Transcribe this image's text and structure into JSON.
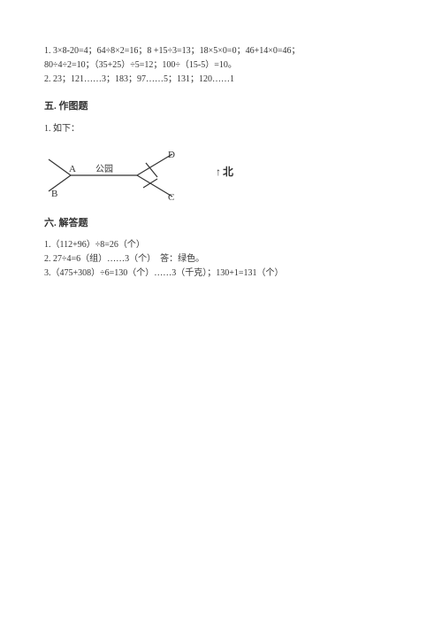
{
  "answers1": {
    "line1": "1. 3×8-20=4；64÷8×2=16；8 +15÷3=13；18×5×0=0；46+14×0=46；",
    "line2": "80÷4÷2=10；（35+25）÷5=12；100÷（15-5）=10。",
    "line3": "2. 23；121……3；183；97……5；131；120……1"
  },
  "section5": {
    "title": "五. 作图题",
    "item1": "1. 如下："
  },
  "diagram": {
    "labels": {
      "A": "A",
      "B": "B",
      "C": "C",
      "D": "D",
      "park": "公园"
    },
    "north": "↑北",
    "svg": {
      "width": 170,
      "height": 70,
      "stroke": "#333333",
      "stroke_width": 1.2,
      "text_color": "#333333",
      "font_size": 11,
      "park_font_size": 10
    }
  },
  "section6": {
    "title": "六. 解答题",
    "item1": "1.（112+96）÷8=26（个）",
    "item2": "2. 27÷4=6（组）……3（个）　答：绿色。",
    "item3": "3.（475+308）÷6=130（个）……3（千克）；130+1=131（个）"
  }
}
